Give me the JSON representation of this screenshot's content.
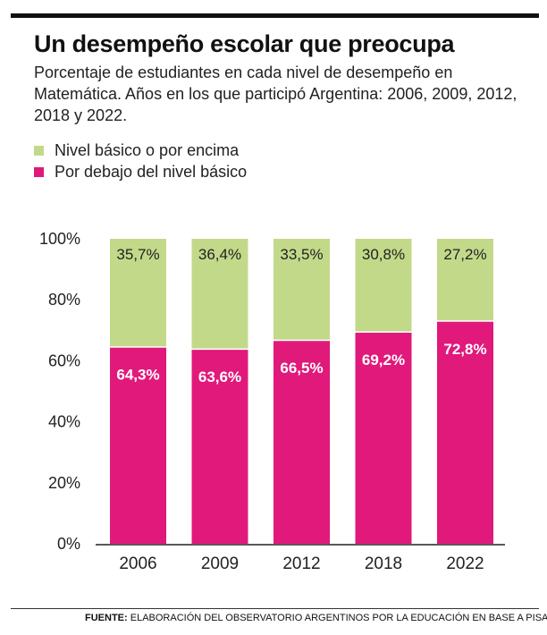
{
  "title": "Un desempeño escolar que preocupa",
  "subtitle": "Porcentaje de estudiantes en cada nivel de desempeño en Matemática. Años en los que participó Argentina: 2006, 2009, 2012, 2018 y 2022.",
  "legend": [
    {
      "label": "Nivel básico o por encima",
      "color": "#c3d98a"
    },
    {
      "label": "Por debajo del nivel básico",
      "color": "#e0197b"
    }
  ],
  "footer": {
    "source_label": "FUENTE:",
    "source_text": "ELABORACIÓN DEL OBSERVATORIO ARGENTINOS POR LA EDUCACIÓN EN BASE A PISA"
  },
  "chart_data": {
    "type": "bar",
    "stacked": true,
    "categories": [
      "2006",
      "2009",
      "2012",
      "2018",
      "2022"
    ],
    "series": [
      {
        "name": "Por debajo del nivel básico",
        "color": "#e0197b",
        "values": [
          64.3,
          63.6,
          66.5,
          69.2,
          72.8
        ],
        "labels": [
          "64,3%",
          "63,6%",
          "66,5%",
          "69,2%",
          "72,8%"
        ]
      },
      {
        "name": "Nivel básico o por encima",
        "color": "#c3d98a",
        "values": [
          35.7,
          36.4,
          33.5,
          30.8,
          27.2
        ],
        "labels": [
          "35,7%",
          "36,4%",
          "33,5%",
          "30,8%",
          "27,2%"
        ]
      }
    ],
    "ylim": [
      0,
      100
    ],
    "yticks": [
      0,
      20,
      40,
      60,
      80,
      100
    ],
    "ytick_labels": [
      "0%",
      "20%",
      "40%",
      "60%",
      "80%",
      "100%"
    ],
    "grid": false
  }
}
